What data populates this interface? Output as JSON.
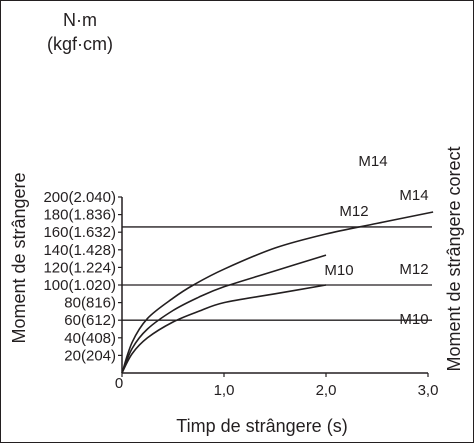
{
  "chart_data": {
    "type": "line",
    "title": "",
    "unit_label": "N·m",
    "unit_label_alt": "(kgf·cm)",
    "ylabel": "Moment de strângere",
    "ylabel_right": "Moment de strângere corect",
    "xlabel": "Timp de strângere (s)",
    "xlim": [
      0,
      3.0
    ],
    "ylim": [
      0,
      200
    ],
    "x_tick_labels": [
      {
        "value": 0,
        "label": "0"
      },
      {
        "value": 1.0,
        "label": "1,0"
      },
      {
        "value": 2.0,
        "label": "2,0"
      },
      {
        "value": 3.0,
        "label": "3,0"
      }
    ],
    "y_tick_labels": [
      {
        "value": 20,
        "label": "20(204)"
      },
      {
        "value": 40,
        "label": "40(408)"
      },
      {
        "value": 60,
        "label": "60(612)"
      },
      {
        "value": 80,
        "label": "80(816)"
      },
      {
        "value": 100,
        "label": "100(1.020)"
      },
      {
        "value": 120,
        "label": "120(1.224)"
      },
      {
        "value": 140,
        "label": "140(1.428)"
      },
      {
        "value": 160,
        "label": "160(1.632)"
      },
      {
        "value": 180,
        "label": "180(1.836)"
      },
      {
        "value": 200,
        "label": "200(2.040)"
      }
    ],
    "series": [
      {
        "name": "M14",
        "x": [
          0,
          0.1,
          0.25,
          0.5,
          0.7,
          1.0,
          1.5,
          2.0,
          2.5,
          3.05
        ],
        "y": [
          0,
          35,
          62,
          85,
          100,
          118,
          142,
          158,
          170,
          183
        ]
      },
      {
        "name": "M12",
        "x": [
          0,
          0.1,
          0.25,
          0.5,
          0.75,
          1.0,
          1.5,
          2.0
        ],
        "y": [
          0,
          28,
          50,
          71,
          86,
          98,
          116,
          134
        ]
      },
      {
        "name": "M10",
        "x": [
          0,
          0.1,
          0.25,
          0.5,
          0.75,
          1.0,
          1.5,
          2.0
        ],
        "y": [
          0,
          22,
          40,
          58,
          70,
          80,
          90,
          100
        ]
      }
    ],
    "reference_lines": [
      {
        "name": "M14",
        "y": 166
      },
      {
        "name": "M12",
        "y": 100
      },
      {
        "name": "M10",
        "y": 60
      }
    ],
    "grid": false,
    "legend": "none"
  }
}
